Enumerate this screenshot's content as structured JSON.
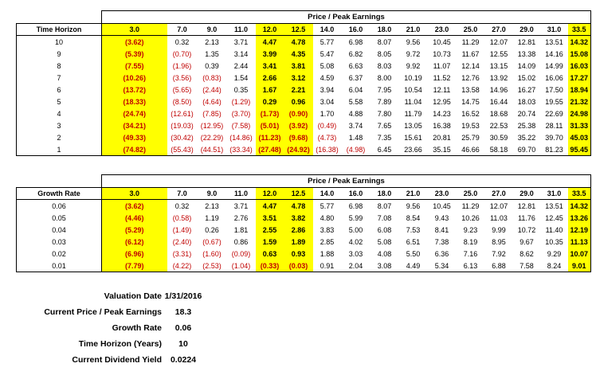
{
  "table1": {
    "title": "Price / Peak Earnings",
    "row_header": "Time Horizon",
    "columns": [
      "3.0",
      "7.0",
      "9.0",
      "11.0",
      "12.0",
      "12.5",
      "14.0",
      "16.0",
      "18.0",
      "21.0",
      "23.0",
      "25.0",
      "27.0",
      "29.0",
      "31.0",
      "33.5"
    ],
    "rows": [
      {
        "label": "10",
        "values": [
          "(3.62)",
          "0.32",
          "2.13",
          "3.71",
          "4.47",
          "4.78",
          "5.77",
          "6.98",
          "8.07",
          "9.56",
          "10.45",
          "11.29",
          "12.07",
          "12.81",
          "13.51",
          "14.32"
        ]
      },
      {
        "label": "9",
        "values": [
          "(5.39)",
          "(0.70)",
          "1.35",
          "3.14",
          "3.99",
          "4.35",
          "5.47",
          "6.82",
          "8.05",
          "9.72",
          "10.73",
          "11.67",
          "12.55",
          "13.38",
          "14.16",
          "15.08"
        ]
      },
      {
        "label": "8",
        "values": [
          "(7.55)",
          "(1.96)",
          "0.39",
          "2.44",
          "3.41",
          "3.81",
          "5.08",
          "6.63",
          "8.03",
          "9.92",
          "11.07",
          "12.14",
          "13.15",
          "14.09",
          "14.99",
          "16.03"
        ]
      },
      {
        "label": "7",
        "values": [
          "(10.26)",
          "(3.56)",
          "(0.83)",
          "1.54",
          "2.66",
          "3.12",
          "4.59",
          "6.37",
          "8.00",
          "10.19",
          "11.52",
          "12.76",
          "13.92",
          "15.02",
          "16.06",
          "17.27"
        ]
      },
      {
        "label": "6",
        "values": [
          "(13.72)",
          "(5.65)",
          "(2.44)",
          "0.35",
          "1.67",
          "2.21",
          "3.94",
          "6.04",
          "7.95",
          "10.54",
          "12.11",
          "13.58",
          "14.96",
          "16.27",
          "17.50",
          "18.94"
        ]
      },
      {
        "label": "5",
        "values": [
          "(18.33)",
          "(8.50)",
          "(4.64)",
          "(1.29)",
          "0.29",
          "0.96",
          "3.04",
          "5.58",
          "7.89",
          "11.04",
          "12.95",
          "14.75",
          "16.44",
          "18.03",
          "19.55",
          "21.32"
        ]
      },
      {
        "label": "4",
        "values": [
          "(24.74)",
          "(12.61)",
          "(7.85)",
          "(3.70)",
          "(1.73)",
          "(0.90)",
          "1.70",
          "4.88",
          "7.80",
          "11.79",
          "14.23",
          "16.52",
          "18.68",
          "20.74",
          "22.69",
          "24.98"
        ]
      },
      {
        "label": "3",
        "values": [
          "(34.21)",
          "(19.03)",
          "(12.95)",
          "(7.58)",
          "(5.01)",
          "(3.92)",
          "(0.49)",
          "3.74",
          "7.65",
          "13.05",
          "16.38",
          "19.53",
          "22.53",
          "25.38",
          "28.11",
          "31.33"
        ]
      },
      {
        "label": "2",
        "values": [
          "(49.33)",
          "(30.42)",
          "(22.29)",
          "(14.86)",
          "(11.23)",
          "(9.68)",
          "(4.73)",
          "1.48",
          "7.35",
          "15.61",
          "20.81",
          "25.79",
          "30.59",
          "35.22",
          "39.70",
          "45.03"
        ]
      },
      {
        "label": "1",
        "values": [
          "(74.82)",
          "(55.43)",
          "(44.51)",
          "(33.34)",
          "(27.48)",
          "(24.92)",
          "(16.38)",
          "(4.98)",
          "6.45",
          "23.66",
          "35.15",
          "46.66",
          "58.18",
          "69.70",
          "81.23",
          "95.45"
        ]
      }
    ]
  },
  "table2": {
    "title": "Price / Peak Earnings",
    "row_header": "Growth Rate",
    "columns": [
      "3.0",
      "7.0",
      "9.0",
      "11.0",
      "12.0",
      "12.5",
      "14.0",
      "16.0",
      "18.0",
      "21.0",
      "23.0",
      "25.0",
      "27.0",
      "29.0",
      "31.0",
      "33.5"
    ],
    "rows": [
      {
        "label": "0.06",
        "values": [
          "(3.62)",
          "0.32",
          "2.13",
          "3.71",
          "4.47",
          "4.78",
          "5.77",
          "6.98",
          "8.07",
          "9.56",
          "10.45",
          "11.29",
          "12.07",
          "12.81",
          "13.51",
          "14.32"
        ]
      },
      {
        "label": "0.05",
        "values": [
          "(4.46)",
          "(0.58)",
          "1.19",
          "2.76",
          "3.51",
          "3.82",
          "4.80",
          "5.99",
          "7.08",
          "8.54",
          "9.43",
          "10.26",
          "11.03",
          "11.76",
          "12.45",
          "13.26"
        ]
      },
      {
        "label": "0.04",
        "values": [
          "(5.29)",
          "(1.49)",
          "0.26",
          "1.81",
          "2.55",
          "2.86",
          "3.83",
          "5.00",
          "6.08",
          "7.53",
          "8.41",
          "9.23",
          "9.99",
          "10.72",
          "11.40",
          "12.19"
        ]
      },
      {
        "label": "0.03",
        "values": [
          "(6.12)",
          "(2.40)",
          "(0.67)",
          "0.86",
          "1.59",
          "1.89",
          "2.85",
          "4.02",
          "5.08",
          "6.51",
          "7.38",
          "8.19",
          "8.95",
          "9.67",
          "10.35",
          "11.13"
        ]
      },
      {
        "label": "0.02",
        "values": [
          "(6.96)",
          "(3.31)",
          "(1.60)",
          "(0.09)",
          "0.63",
          "0.93",
          "1.88",
          "3.03",
          "4.08",
          "5.50",
          "6.36",
          "7.16",
          "7.92",
          "8.62",
          "9.29",
          "10.07"
        ]
      },
      {
        "label": "0.01",
        "values": [
          "(7.79)",
          "(4.22)",
          "(2.53)",
          "(1.04)",
          "(0.33)",
          "(0.03)",
          "0.91",
          "2.04",
          "3.08",
          "4.49",
          "5.34",
          "6.13",
          "6.88",
          "7.58",
          "8.24",
          "9.01"
        ]
      }
    ]
  },
  "info": [
    {
      "label": "Valuation Date",
      "value": "1/31/2016"
    },
    {
      "label": "Current Price / Peak Earnings",
      "value": "18.3"
    },
    {
      "label": "Growth Rate",
      "value": "0.06"
    },
    {
      "label": "Time Horizon (Years)",
      "value": "10"
    },
    {
      "label": "Current Dividend Yield",
      "value": "0.0224"
    }
  ],
  "colors": {
    "highlight": "#ffff00",
    "negative": "#c00000"
  }
}
